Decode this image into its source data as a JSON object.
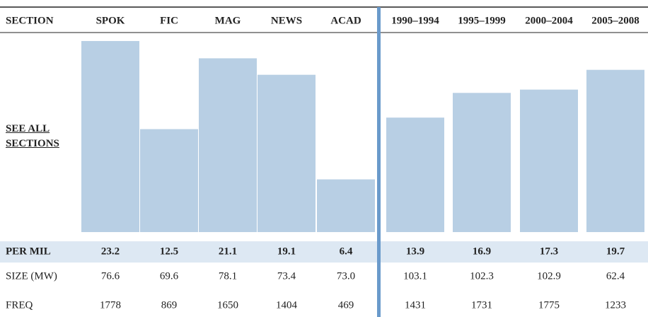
{
  "header": {
    "label": "SECTION",
    "columns": [
      "SPOK",
      "FIC",
      "MAG",
      "NEWS",
      "ACAD",
      "1990–1994",
      "1995–1999",
      "2000–2004",
      "2005–2008"
    ]
  },
  "link": "SEE ALL SECTIONS",
  "rows": [
    {
      "label": "PER MIL",
      "values": [
        23.2,
        12.5,
        21.1,
        19.1,
        6.4,
        13.9,
        16.9,
        17.3,
        19.7
      ]
    },
    {
      "label": "SIZE (MW)",
      "values": [
        "76.6",
        "69.6",
        "78.1",
        "73.4",
        "73.0",
        "103.1",
        "102.3",
        "102.9",
        "62.4"
      ]
    },
    {
      "label": "FREQ",
      "values": [
        1778,
        869,
        1650,
        1404,
        469,
        1431,
        1731,
        1775,
        1233
      ]
    }
  ]
}
